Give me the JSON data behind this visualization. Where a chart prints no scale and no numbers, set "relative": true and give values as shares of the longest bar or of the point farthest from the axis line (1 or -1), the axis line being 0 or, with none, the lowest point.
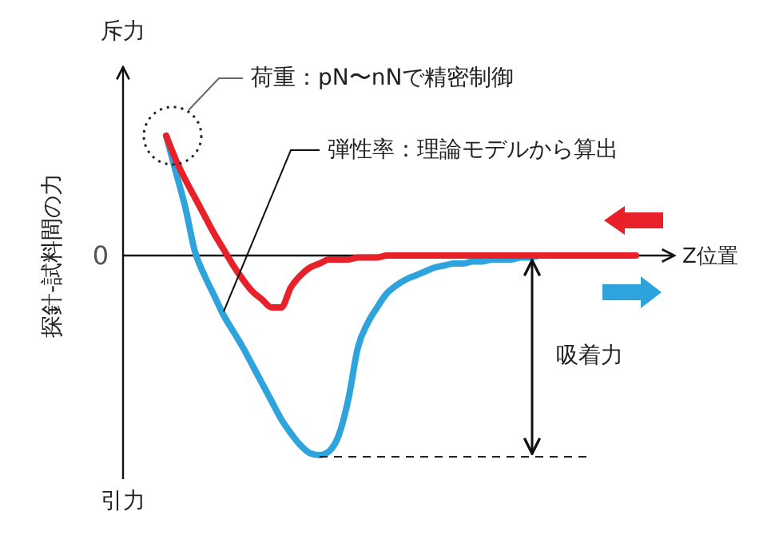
{
  "chart_data": {
    "type": "line",
    "relative": true,
    "ylabel": "探針-試料間の力",
    "xlabel": "Z位置",
    "annotations": [
      "斥力",
      "引力",
      "荷重：pN〜nNで精密制御",
      "弾性率：理論モデルから算出",
      "吸着力"
    ],
    "ref_lines": [
      {
        "axis": "y",
        "value": 0,
        "label": "0"
      }
    ],
    "categories": [
      null,
      null,
      null,
      null,
      null,
      null,
      null,
      null,
      null,
      null,
      null,
      null,
      null,
      null,
      null,
      null,
      null,
      null,
      null,
      null,
      null,
      null,
      null,
      null,
      null,
      null,
      null,
      null,
      null,
      null,
      null,
      null,
      null,
      null,
      null,
      null,
      null,
      null,
      null,
      null,
      null,
      null,
      null,
      null,
      null,
      null,
      null,
      null,
      null,
      null
    ],
    "series": [
      {
        "color": "#2ea3dc",
        "values": [
          0.6,
          0.42,
          0.24,
          0.02,
          -0.1,
          -0.2,
          -0.3,
          -0.38,
          -0.46,
          -0.55,
          -0.64,
          -0.73,
          -0.82,
          -0.89,
          -0.95,
          -0.99,
          -1,
          -0.98,
          -0.9,
          -0.72,
          -0.46,
          -0.34,
          -0.26,
          -0.19,
          -0.15,
          -0.12,
          -0.1,
          -0.08,
          -0.06,
          -0.05,
          -0.04,
          -0.04,
          -0.03,
          -0.03,
          -0.02,
          -0.02,
          -0.02,
          -0.01,
          -0.01,
          0,
          0,
          null,
          null,
          null,
          null,
          null,
          null,
          null,
          null,
          null
        ]
      },
      {
        "color": "#e8202a",
        "values": [
          0.6,
          0.48,
          0.38,
          0.29,
          0.2,
          0.11,
          0.03,
          -0.05,
          -0.12,
          -0.18,
          -0.22,
          -0.26,
          -0.26,
          -0.16,
          -0.1,
          -0.06,
          -0.04,
          -0.02,
          -0.02,
          -0.02,
          -0.01,
          -0.01,
          -0.01,
          0,
          0,
          0,
          0,
          0,
          0,
          0,
          0,
          0,
          0,
          0,
          0,
          0,
          0,
          0,
          0,
          0,
          0,
          0,
          0,
          0,
          0,
          0,
          0,
          0,
          0,
          0
        ]
      }
    ],
    "marker": "none",
    "line_style": "solid"
  }
}
